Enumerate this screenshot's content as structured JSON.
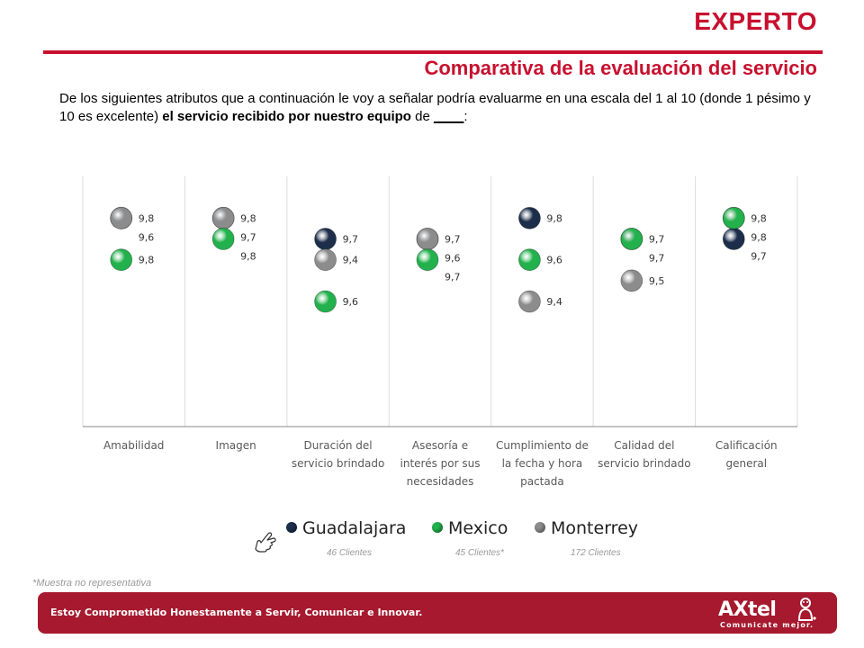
{
  "header": {
    "title": "EXPERTO",
    "subtitle": "Comparativa de la evaluación del servicio"
  },
  "question": {
    "part1": "De los siguientes atributos que a continuación le voy a señalar podría evaluarme en una escala del 1 al 10 (donde 1 pésimo y 10 es excelente) ",
    "bold": "el servicio recibido por nuestro equipo",
    "part2": " de ",
    "blank": "____",
    "part3": ":"
  },
  "chart_data": {
    "type": "scatter",
    "categories": [
      [
        "Amabilidad"
      ],
      [
        "Imagen"
      ],
      [
        "Duración del",
        "servicio brindado"
      ],
      [
        "Asesoría e",
        "interés por sus",
        "necesidades"
      ],
      [
        "Cumplimiento de",
        "la fecha y hora",
        "pactada"
      ],
      [
        "Calidad del",
        "servicio brindado"
      ],
      [
        "Calificación",
        "general"
      ]
    ],
    "series": [
      {
        "name": "Guadalajara",
        "color": "#1c2e4a",
        "values": [
          9.8,
          9.8,
          9.7,
          9.7,
          9.8,
          9.7,
          9.7
        ]
      },
      {
        "name": "Mexico",
        "color": "#22b14c",
        "values": [
          9.6,
          9.7,
          9.4,
          9.6,
          9.6,
          9.7,
          9.8
        ]
      },
      {
        "name": "Monterrey",
        "color": "#8c8c8c",
        "values": [
          9.8,
          9.8,
          9.6,
          9.7,
          9.4,
          9.5,
          9.8
        ]
      }
    ],
    "labels": [
      [
        "9,8",
        "9,8",
        "9,6"
      ],
      [
        "9,8",
        "9,8",
        "9,7"
      ],
      [
        "9,7",
        "9,6",
        "9,4"
      ],
      [
        "9,7",
        "9,7",
        "9,6"
      ],
      [
        "9,8",
        "9,6",
        "9,4"
      ],
      [
        "9,7",
        "9,7",
        "9,5"
      ],
      [
        "9,7",
        "9,8",
        "9,8"
      ]
    ],
    "ylim": [
      8.8,
      10.0
    ],
    "grid": "vertical separators",
    "legend_position": "bottom"
  },
  "legend": {
    "items": [
      {
        "label": "Guadalajara",
        "color": "#1c2e4a",
        "count": "46 Clientes"
      },
      {
        "label": "Mexico",
        "color": "#22b14c",
        "count": "45 Clientes*"
      },
      {
        "label": "Monterrey",
        "color": "#8c8c8c",
        "count": "172 Clientes"
      }
    ]
  },
  "footnote": "*Muestra no representativa",
  "footer": {
    "slogan": "Estoy Comprometido Honestamente a Servir, Comunicar e Innovar.",
    "logo_word": "AXtel",
    "logo_tagline": "Comunicate mejor."
  }
}
